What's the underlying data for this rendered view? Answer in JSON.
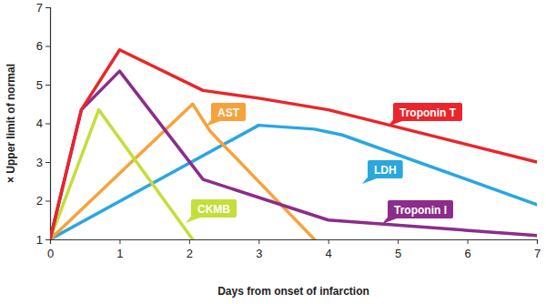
{
  "chart_data": {
    "type": "line",
    "x_label": "Days from onset of infarction",
    "y_label": "× Upper limit of normal",
    "xlim": [
      0,
      7
    ],
    "xticks": [
      0,
      1,
      2,
      3,
      4,
      5,
      6,
      7
    ],
    "ylim": [
      1,
      7
    ],
    "yticks": [
      1,
      2,
      3,
      4,
      5,
      6,
      7
    ],
    "grid": false,
    "series": [
      {
        "name": "LDH",
        "color": "#2aa7de",
        "x": [
          0,
          3,
          3.8,
          4.2,
          7
        ],
        "values": [
          1,
          3.95,
          3.85,
          3.7,
          1.9
        ]
      },
      {
        "name": "AST",
        "color": "#f6a23c",
        "x": [
          0,
          2.05,
          2.3,
          3.8
        ],
        "values": [
          1,
          4.5,
          3.8,
          1
        ]
      },
      {
        "name": "CKMB",
        "color": "#c5de3a",
        "x": [
          0,
          0.7,
          2.05
        ],
        "values": [
          1,
          4.35,
          1
        ]
      },
      {
        "name": "Troponin I",
        "color": "#8b2d8b",
        "x": [
          0,
          0.45,
          1,
          2.2,
          4,
          7
        ],
        "values": [
          1,
          4.35,
          5.35,
          2.55,
          1.5,
          1.1
        ]
      },
      {
        "name": "Troponin T",
        "color": "#e8262b",
        "x": [
          0,
          0.45,
          1,
          2.2,
          3,
          4,
          7
        ],
        "values": [
          1,
          4.35,
          5.9,
          4.85,
          4.65,
          4.35,
          3.0
        ]
      }
    ]
  }
}
